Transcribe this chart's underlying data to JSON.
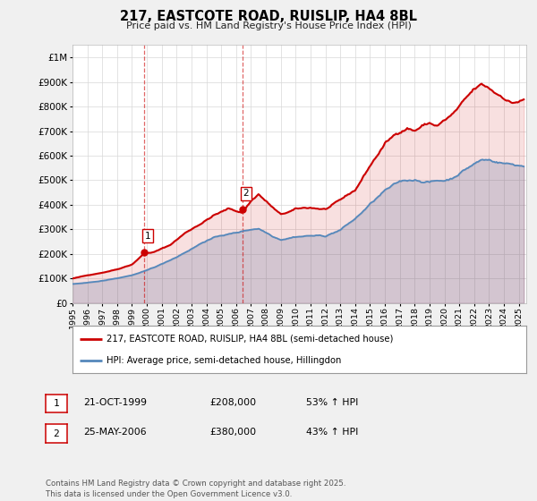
{
  "title": "217, EASTCOTE ROAD, RUISLIP, HA4 8BL",
  "subtitle": "Price paid vs. HM Land Registry's House Price Index (HPI)",
  "ylabel_ticks": [
    "£0",
    "£100K",
    "£200K",
    "£300K",
    "£400K",
    "£500K",
    "£600K",
    "£700K",
    "£800K",
    "£900K",
    "£1M"
  ],
  "ytick_values": [
    0,
    100000,
    200000,
    300000,
    400000,
    500000,
    600000,
    700000,
    800000,
    900000,
    1000000
  ],
  "ylim": [
    0,
    1050000
  ],
  "xlim_start": 1995.0,
  "xlim_end": 2025.5,
  "background_color": "#f0f0f0",
  "plot_bg_color": "#ffffff",
  "grid_color": "#d8d8d8",
  "red_line_color": "#cc0000",
  "blue_line_color": "#5588bb",
  "red_fill_color": "#cc0000",
  "blue_fill_color": "#5588bb",
  "sale1_x": 1999.8,
  "sale1_y": 208000,
  "sale1_label": "1",
  "sale2_x": 2006.4,
  "sale2_y": 380000,
  "sale2_label": "2",
  "legend_line1": "217, EASTCOTE ROAD, RUISLIP, HA4 8BL (semi-detached house)",
  "legend_line2": "HPI: Average price, semi-detached house, Hillingdon",
  "table_row1": [
    "1",
    "21-OCT-1999",
    "£208,000",
    "53% ↑ HPI"
  ],
  "table_row2": [
    "2",
    "25-MAY-2006",
    "£380,000",
    "43% ↑ HPI"
  ],
  "footnote": "Contains HM Land Registry data © Crown copyright and database right 2025.\nThis data is licensed under the Open Government Licence v3.0.",
  "xtick_years": [
    1995,
    1996,
    1997,
    1998,
    1999,
    2000,
    2001,
    2002,
    2003,
    2004,
    2005,
    2006,
    2007,
    2008,
    2009,
    2010,
    2011,
    2012,
    2013,
    2014,
    2015,
    2016,
    2017,
    2018,
    2019,
    2020,
    2021,
    2022,
    2023,
    2024,
    2025
  ]
}
